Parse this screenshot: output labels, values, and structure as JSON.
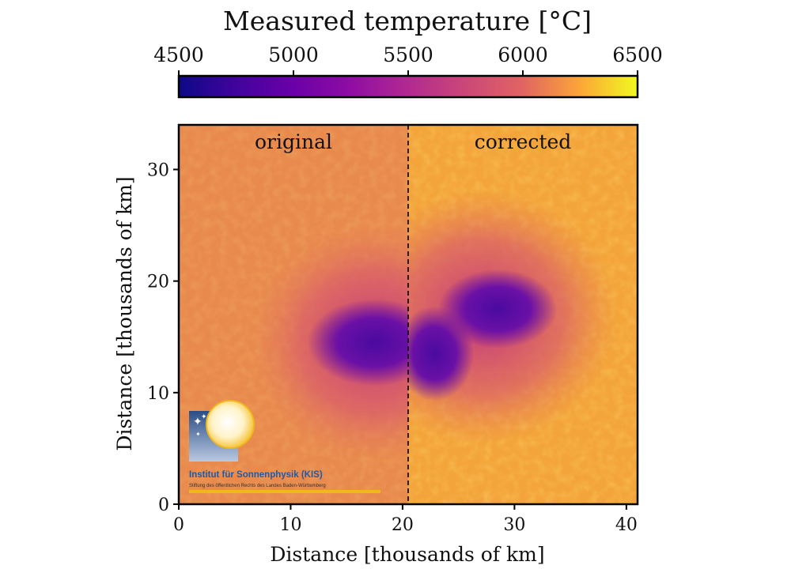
{
  "chart_data": {
    "type": "heatmap",
    "colorbar": {
      "label": "Measured temperature [°C]",
      "range": [
        4500,
        6500
      ],
      "ticks": [
        4500,
        5000,
        5500,
        6000,
        6500
      ],
      "colormap": "plasma",
      "placement": "top"
    },
    "panels": [
      {
        "label": "original",
        "x_range": [
          0,
          20.5
        ]
      },
      {
        "label": "corrected",
        "x_range": [
          20.5,
          41
        ]
      }
    ],
    "divider_x": 20.5,
    "xlabel": "Distance [thousands of km]",
    "ylabel": "Distance [thousands of km]",
    "xlim": [
      0,
      41
    ],
    "ylim": [
      0,
      34
    ],
    "xticks": [
      0,
      10,
      20,
      30,
      40
    ],
    "yticks": [
      0,
      10,
      20,
      30
    ],
    "grid": false,
    "background_temperature_c": 5800,
    "umbra_temperature_c": 4700,
    "umbral_cores": [
      {
        "panel": "original",
        "x": 17.5,
        "y": 14.5,
        "temperature_c": 4700
      },
      {
        "panel": "corrected",
        "x": 28.5,
        "y": 17.5,
        "temperature_c": 4700
      },
      {
        "panel": "corrected",
        "x": 22.5,
        "y": 13.5,
        "temperature_c": 4750
      }
    ]
  },
  "logo": {
    "name": "Institut für Sonnenphysik (KIS)",
    "subtitle": "Stiftung des öffentlichen Rechts des Landes Baden-Württemberg"
  }
}
